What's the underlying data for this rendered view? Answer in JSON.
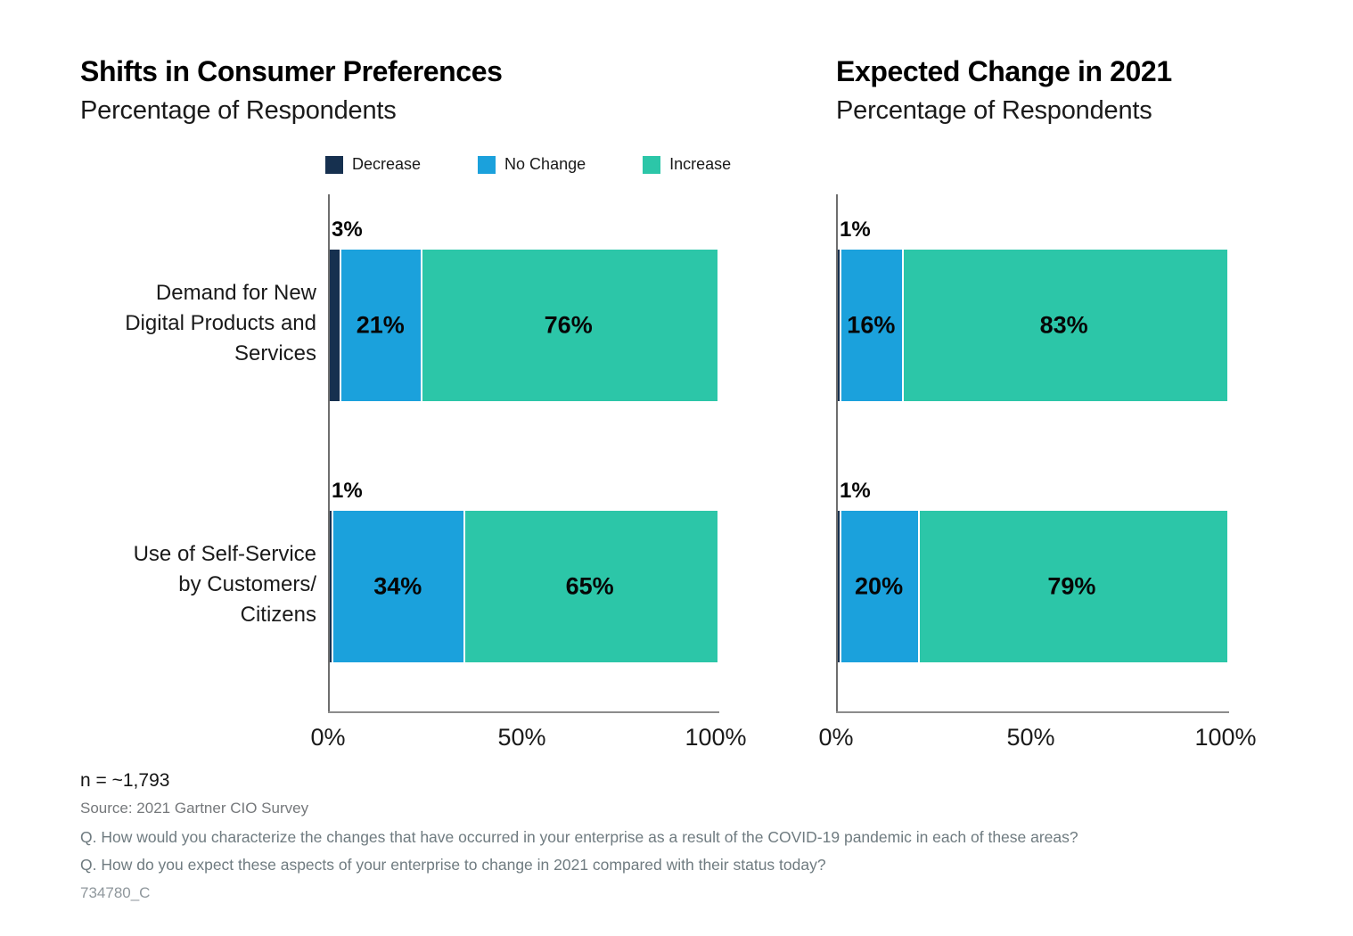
{
  "page": {
    "background": "#ffffff"
  },
  "legend": {
    "items": [
      {
        "label": "Decrease",
        "color": "#16304f"
      },
      {
        "label": "No Change",
        "color": "#1ba1dc"
      },
      {
        "label": "Increase",
        "color": "#2cc6a8"
      }
    ]
  },
  "chart_data": [
    {
      "type": "bar",
      "orientation": "horizontal",
      "stacked": true,
      "title": "Shifts in Consumer Preferences",
      "subtitle": "Percentage of Respondents",
      "categories": [
        "Demand for New Digital Products and Services",
        "Use of Self-Service by Customers/Citizens"
      ],
      "category_label_lines": [
        [
          "Demand for New",
          "Digital Products and",
          "Services"
        ],
        [
          "Use of Self-Service",
          "by Customers/",
          "Citizens"
        ]
      ],
      "series": [
        {
          "name": "Decrease",
          "color": "#16304f",
          "values": [
            3,
            1
          ]
        },
        {
          "name": "No Change",
          "color": "#1ba1dc",
          "values": [
            21,
            34
          ]
        },
        {
          "name": "Increase",
          "color": "#2cc6a8",
          "values": [
            76,
            65
          ]
        }
      ],
      "xlim": [
        0,
        100
      ],
      "x_ticks": [
        {
          "label": "0%",
          "value": 0
        },
        {
          "label": "50%",
          "value": 50
        },
        {
          "label": "100%",
          "value": 100
        }
      ],
      "grid": false,
      "legend_position": "top",
      "show_category_labels": true
    },
    {
      "type": "bar",
      "orientation": "horizontal",
      "stacked": true,
      "title": "Expected Change in 2021",
      "subtitle": "Percentage of Respondents",
      "categories": [
        "Demand for New Digital Products and Services",
        "Use of Self-Service by Customers/Citizens"
      ],
      "series": [
        {
          "name": "Decrease",
          "color": "#16304f",
          "values": [
            1,
            1
          ]
        },
        {
          "name": "No Change",
          "color": "#1ba1dc",
          "values": [
            16,
            20
          ]
        },
        {
          "name": "Increase",
          "color": "#2cc6a8",
          "values": [
            83,
            79
          ]
        }
      ],
      "xlim": [
        0,
        100
      ],
      "x_ticks": [
        {
          "label": "0%",
          "value": 0
        },
        {
          "label": "50%",
          "value": 50
        },
        {
          "label": "100%",
          "value": 100
        }
      ],
      "grid": false,
      "legend_position": "none",
      "show_category_labels": false
    }
  ],
  "footer": {
    "n_label": "n = ~1,793",
    "source": "Source: 2021 Gartner CIO Survey",
    "q1": "Q. How would you characterize the changes that have occurred in your enterprise as a result of the COVID-19 pandemic in each of these areas?",
    "q2": "Q. How do you expect these aspects of your enterprise to change in 2021 compared with their status today?",
    "doc_id": "734780_C"
  }
}
